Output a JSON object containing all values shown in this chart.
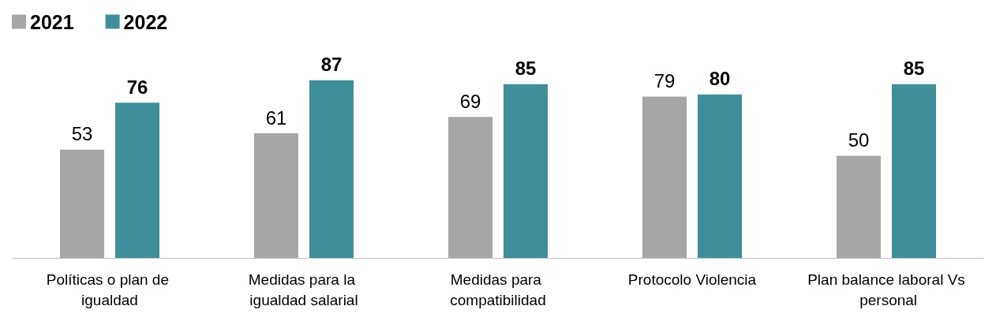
{
  "chart_data": {
    "type": "bar",
    "categories": [
      "Políticas o plan de igualdad",
      "Medidas para la igualdad salarial",
      "Medidas para compatibilidad",
      "Protocolo Violencia",
      "Plan balance laboral Vs personal"
    ],
    "series": [
      {
        "name": "2021",
        "color": "#a6a6a6",
        "values": [
          53,
          61,
          69,
          79,
          50
        ]
      },
      {
        "name": "2022",
        "color": "#3f8e9c",
        "values": [
          76,
          87,
          85,
          80,
          85
        ]
      }
    ],
    "data_labels": true,
    "legend": "top left"
  }
}
